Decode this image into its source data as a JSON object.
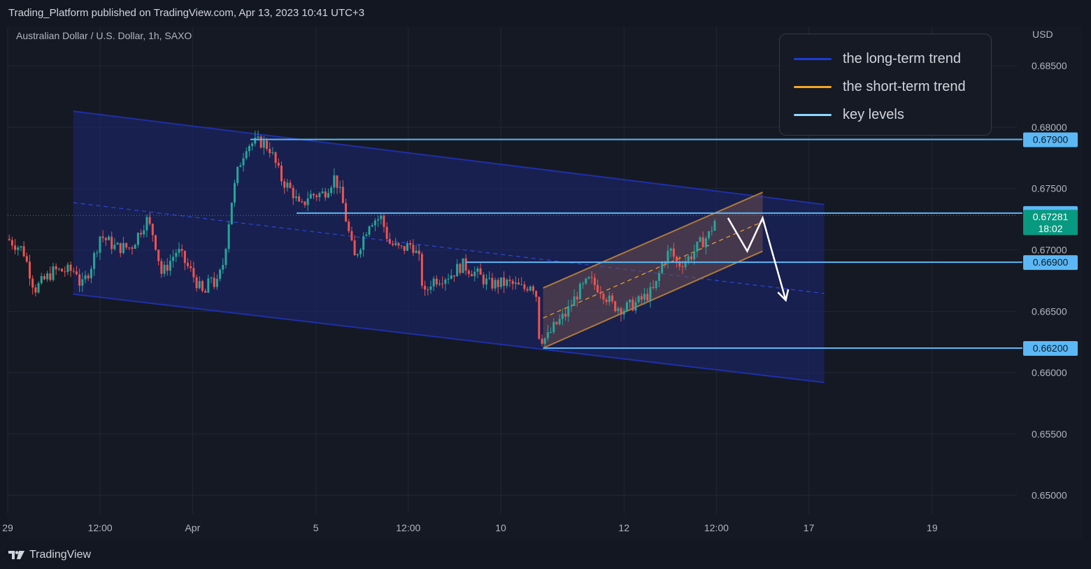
{
  "header": {
    "published_text": "Trading_Platform published on TradingView.com, Apr 13, 2023 10:41 UTC+3"
  },
  "chart_header": {
    "symbol_text": "Australian Dollar / U.S. Dollar, 1h, SAXO",
    "currency": "USD"
  },
  "legend": {
    "items": [
      {
        "label": "the long-term trend",
        "color": "#1e3bd6"
      },
      {
        "label": "the short-term trend",
        "color": "#f5a623"
      },
      {
        "label": "key levels",
        "color": "#8fd9ff"
      }
    ]
  },
  "footer": {
    "brand": "TradingView"
  },
  "colors": {
    "background": "#151924",
    "grid": "#232733",
    "up": "#26a69a",
    "down": "#ef5350",
    "key_level": "#5bb8f5",
    "channel_line": "#1f2fa8",
    "channel_fill": "#1b2673",
    "short_channel_line": "#b07a3a",
    "short_channel_fill": "#6b4c4c",
    "price_badge": "#089981"
  },
  "chart_data": {
    "type": "candlestick",
    "title": "Australian Dollar / U.S. Dollar, 1h, SAXO",
    "y_axis": {
      "range": [
        0.6485,
        0.6882
      ],
      "ticks": [
        "0.68500",
        "0.68000",
        "0.67500",
        "0.67000",
        "0.66500",
        "0.66000",
        "0.65500",
        "0.65000"
      ],
      "unit": "USD"
    },
    "x_axis": {
      "ticks": [
        {
          "label": "29",
          "t": 0
        },
        {
          "label": "12:00",
          "t": 12
        },
        {
          "label": "Apr",
          "t": 24
        },
        {
          "label": "5",
          "t": 40
        },
        {
          "label": "12:00",
          "t": 52
        },
        {
          "label": "10",
          "t": 64
        },
        {
          "label": "12",
          "t": 80
        },
        {
          "label": "12:00",
          "t": 92
        },
        {
          "label": "17",
          "t": 104
        },
        {
          "label": "19",
          "t": 120
        }
      ],
      "range": [
        0,
        131
      ]
    },
    "series": [
      {
        "t": 0.0,
        "price": 0.6709
      },
      {
        "t": 2.0,
        "price": 0.67
      },
      {
        "t": 3.5,
        "price": 0.6668
      },
      {
        "t": 6.0,
        "price": 0.6683
      },
      {
        "t": 9.0,
        "price": 0.6683
      },
      {
        "t": 9.5,
        "price": 0.6668
      },
      {
        "t": 11.0,
        "price": 0.669
      },
      {
        "t": 12.0,
        "price": 0.6712
      },
      {
        "t": 14.0,
        "price": 0.6702
      },
      {
        "t": 16.0,
        "price": 0.6702
      },
      {
        "t": 18.0,
        "price": 0.6725
      },
      {
        "t": 19.0,
        "price": 0.6711
      },
      {
        "t": 20.0,
        "price": 0.668
      },
      {
        "t": 22.0,
        "price": 0.67
      },
      {
        "t": 24.0,
        "price": 0.668
      },
      {
        "t": 25.5,
        "price": 0.6662
      },
      {
        "t": 26.5,
        "price": 0.668
      },
      {
        "t": 27.0,
        "price": 0.6668
      },
      {
        "t": 28.0,
        "price": 0.669
      },
      {
        "t": 29.0,
        "price": 0.6738
      },
      {
        "t": 30.0,
        "price": 0.6768
      },
      {
        "t": 31.0,
        "price": 0.6786
      },
      {
        "t": 33.0,
        "price": 0.6788
      },
      {
        "t": 34.0,
        "price": 0.6783
      },
      {
        "t": 35.5,
        "price": 0.6758
      },
      {
        "t": 37.0,
        "price": 0.6747
      },
      {
        "t": 38.0,
        "price": 0.6733
      },
      {
        "t": 39.0,
        "price": 0.6744
      },
      {
        "t": 41.0,
        "price": 0.6746
      },
      {
        "t": 42.5,
        "price": 0.676
      },
      {
        "t": 43.5,
        "price": 0.6738
      },
      {
        "t": 44.0,
        "price": 0.6722
      },
      {
        "t": 45.0,
        "price": 0.6693
      },
      {
        "t": 46.0,
        "price": 0.6708
      },
      {
        "t": 47.0,
        "price": 0.6724
      },
      {
        "t": 48.5,
        "price": 0.6726
      },
      {
        "t": 49.5,
        "price": 0.6706
      },
      {
        "t": 51.0,
        "price": 0.67
      },
      {
        "t": 52.5,
        "price": 0.6705
      },
      {
        "t": 53.5,
        "price": 0.669
      },
      {
        "t": 54.0,
        "price": 0.6661
      },
      {
        "t": 55.0,
        "price": 0.6675
      },
      {
        "t": 57.5,
        "price": 0.668
      },
      {
        "t": 59.0,
        "price": 0.6688
      },
      {
        "t": 61.0,
        "price": 0.668
      },
      {
        "t": 62.5,
        "price": 0.6672
      },
      {
        "t": 65.0,
        "price": 0.6673
      },
      {
        "t": 67.0,
        "price": 0.6668
      },
      {
        "t": 68.0,
        "price": 0.6674
      },
      {
        "t": 68.8,
        "price": 0.666
      },
      {
        "t": 69.0,
        "price": 0.6628
      },
      {
        "t": 70.0,
        "price": 0.6628
      },
      {
        "t": 71.0,
        "price": 0.6638
      },
      {
        "t": 72.5,
        "price": 0.6648
      },
      {
        "t": 74.0,
        "price": 0.6665
      },
      {
        "t": 75.5,
        "price": 0.6675
      },
      {
        "t": 77.0,
        "price": 0.6668
      },
      {
        "t": 78.5,
        "price": 0.6655
      },
      {
        "t": 80.0,
        "price": 0.6652
      },
      {
        "t": 82.0,
        "price": 0.6658
      },
      {
        "t": 84.0,
        "price": 0.6668
      },
      {
        "t": 85.0,
        "price": 0.669
      },
      {
        "t": 86.0,
        "price": 0.67
      },
      {
        "t": 87.0,
        "price": 0.6688
      },
      {
        "t": 88.5,
        "price": 0.6694
      },
      {
        "t": 90.0,
        "price": 0.6706
      },
      {
        "t": 91.0,
        "price": 0.6712
      },
      {
        "t": 92.0,
        "price": 0.6727
      }
    ],
    "annotations": {
      "key_levels": [
        "0.67900",
        "0.67300",
        "0.66900",
        "0.66200"
      ],
      "last_price": "0.67281",
      "countdown": "18:02",
      "long_term_channel": {
        "t_start": 8.5,
        "t_end": 106.0,
        "upper": [
          0.6813,
          0.6737
        ],
        "lower": [
          0.6664,
          0.6592
        ]
      },
      "short_term_channel": {
        "t_start": 69.5,
        "t_end": 98.0,
        "upper": [
          0.6669,
          0.6747
        ],
        "lower": [
          0.662,
          0.6699
        ]
      },
      "projection": [
        {
          "t": 93.5,
          "price": 0.6726
        },
        {
          "t": 96.0,
          "price": 0.6699
        },
        {
          "t": 98.0,
          "price": 0.6726
        },
        {
          "t": 101.0,
          "price": 0.6659
        }
      ]
    }
  }
}
